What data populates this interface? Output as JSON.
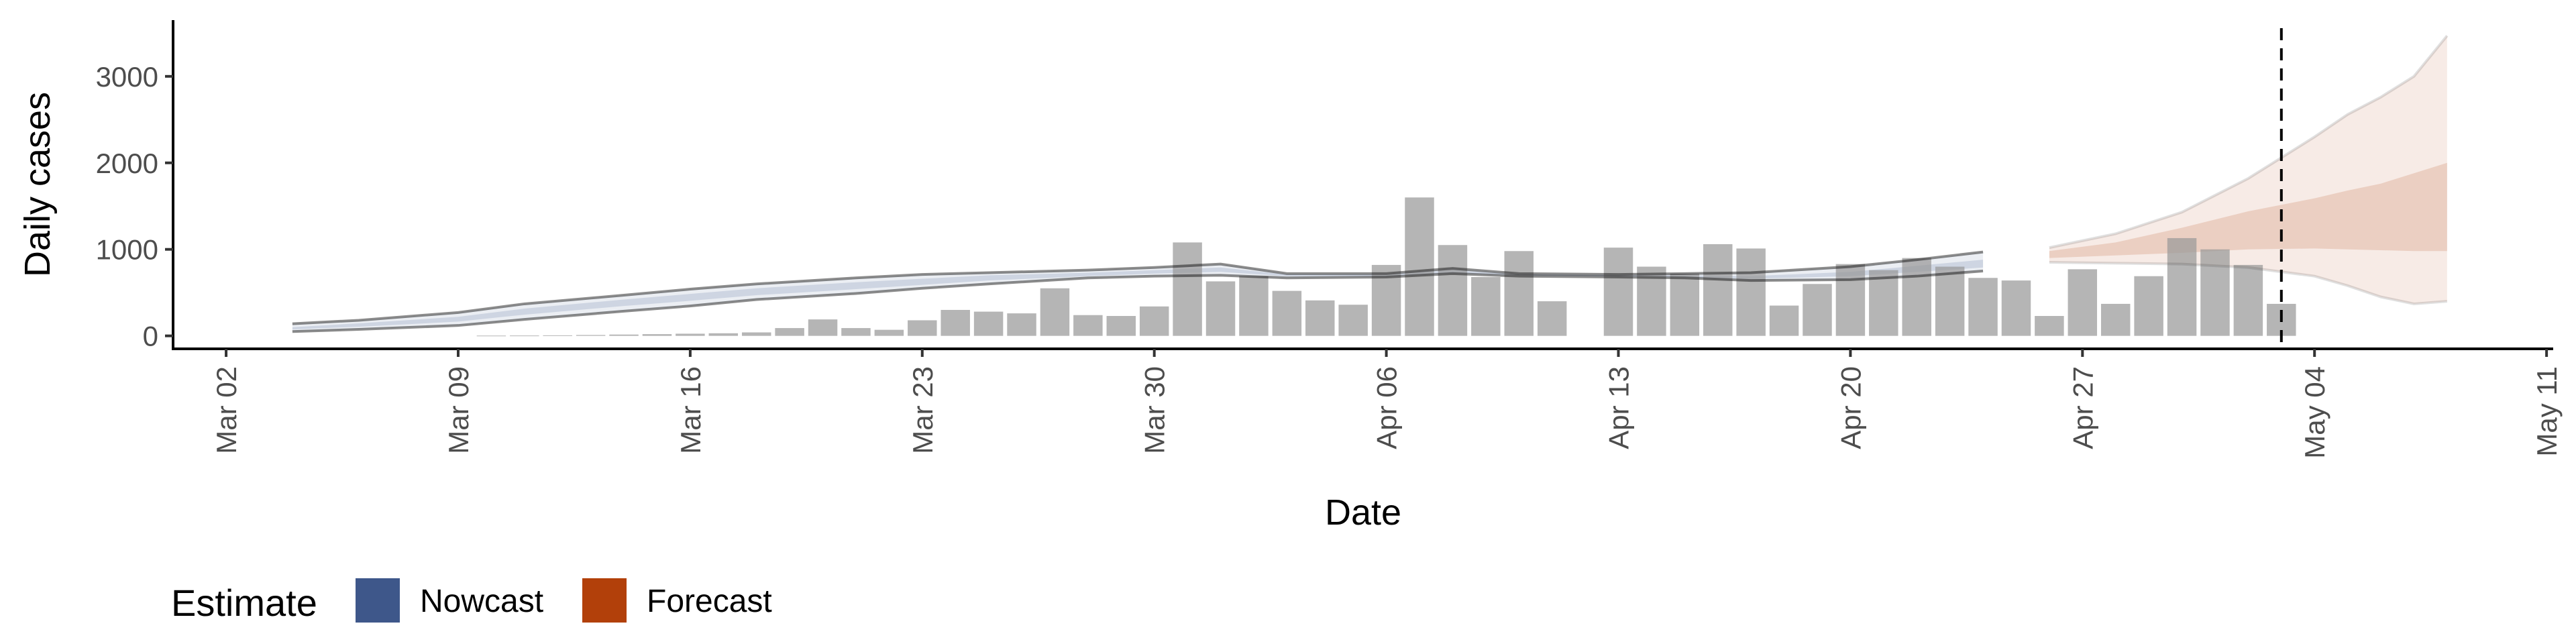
{
  "chart_data": {
    "type": "bar",
    "xlabel": "Date",
    "ylabel": "Daily cases",
    "y_ticks": [
      0,
      1000,
      2000,
      3000
    ],
    "ylim": [
      -150,
      3650
    ],
    "x_ticks": [
      "Mar 02",
      "Mar 09",
      "Mar 16",
      "Mar 23",
      "Mar 30",
      "Apr 06",
      "Apr 13",
      "Apr 20",
      "Apr 27",
      "May 04",
      "May 11"
    ],
    "x_start_date": "2020-03-02",
    "xlim_days": [
      -1.6,
      70.2
    ],
    "grid": false,
    "estimate_date": "2020-05-03",
    "bars": {
      "dates": [
        "2020-03-10",
        "2020-03-11",
        "2020-03-12",
        "2020-03-13",
        "2020-03-14",
        "2020-03-15",
        "2020-03-16",
        "2020-03-17",
        "2020-03-18",
        "2020-03-19",
        "2020-03-20",
        "2020-03-21",
        "2020-03-22",
        "2020-03-23",
        "2020-03-24",
        "2020-03-25",
        "2020-03-26",
        "2020-03-27",
        "2020-03-28",
        "2020-03-29",
        "2020-03-30",
        "2020-03-31",
        "2020-04-01",
        "2020-04-02",
        "2020-04-03",
        "2020-04-04",
        "2020-04-05",
        "2020-04-06",
        "2020-04-07",
        "2020-04-08",
        "2020-04-09",
        "2020-04-10",
        "2020-04-11",
        "2020-04-12",
        "2020-04-13",
        "2020-04-14",
        "2020-04-15",
        "2020-04-16",
        "2020-04-17",
        "2020-04-18",
        "2020-04-19",
        "2020-04-20",
        "2020-04-21",
        "2020-04-22",
        "2020-04-23",
        "2020-04-24",
        "2020-04-25",
        "2020-04-26",
        "2020-04-27",
        "2020-04-28",
        "2020-04-29",
        "2020-04-30",
        "2020-05-01",
        "2020-05-02",
        "2020-05-03"
      ],
      "values": [
        3,
        4,
        6,
        10,
        15,
        20,
        25,
        30,
        40,
        90,
        190,
        90,
        70,
        180,
        300,
        280,
        260,
        550,
        240,
        230,
        340,
        1080,
        630,
        690,
        520,
        410,
        360,
        820,
        1600,
        1050,
        680,
        980,
        400,
        0,
        1020,
        800,
        720,
        1060,
        1010,
        350,
        600,
        830,
        760,
        900,
        800,
        670,
        640,
        230,
        770,
        370,
        690,
        1130,
        1000,
        820,
        370
      ]
    },
    "nowcast": {
      "name": "Nowcast",
      "color": "#3a5488",
      "dates": [
        "2020-03-04",
        "2020-03-06",
        "2020-03-09",
        "2020-03-11",
        "2020-03-14",
        "2020-03-16",
        "2020-03-18",
        "2020-03-21",
        "2020-03-23",
        "2020-03-25",
        "2020-03-28",
        "2020-03-30",
        "2020-04-01",
        "2020-04-03",
        "2020-04-06",
        "2020-04-08",
        "2020-04-10",
        "2020-04-13",
        "2020-04-15",
        "2020-04-17",
        "2020-04-20",
        "2020-04-22",
        "2020-04-24"
      ],
      "upper90": [
        140,
        180,
        270,
        370,
        470,
        540,
        600,
        670,
        710,
        730,
        760,
        790,
        830,
        720,
        720,
        780,
        720,
        710,
        720,
        730,
        800,
        880,
        970
      ],
      "upper50": [
        100,
        145,
        220,
        315,
        420,
        485,
        550,
        620,
        660,
        700,
        730,
        760,
        790,
        710,
        710,
        760,
        710,
        700,
        700,
        690,
        740,
        810,
        880
      ],
      "lower50": [
        75,
        105,
        165,
        245,
        345,
        405,
        470,
        540,
        590,
        640,
        690,
        720,
        740,
        690,
        690,
        730,
        700,
        690,
        680,
        660,
        690,
        740,
        790
      ],
      "lower90": [
        50,
        75,
        120,
        190,
        285,
        345,
        420,
        490,
        550,
        600,
        670,
        690,
        700,
        670,
        680,
        720,
        690,
        680,
        670,
        640,
        650,
        690,
        750
      ]
    },
    "forecast": {
      "name": "Forecast",
      "color": "#b03c05",
      "dates": [
        "2020-04-26",
        "2020-04-28",
        "2020-04-30",
        "2020-05-02",
        "2020-05-04",
        "2020-05-05",
        "2020-05-06",
        "2020-05-07",
        "2020-05-08"
      ],
      "upper90": [
        1020,
        1180,
        1430,
        1820,
        2300,
        2560,
        2760,
        3000,
        3470
      ],
      "upper50": [
        980,
        1080,
        1250,
        1440,
        1590,
        1680,
        1760,
        1880,
        2000
      ],
      "lower50": [
        900,
        930,
        960,
        1000,
        1010,
        1000,
        990,
        980,
        980
      ],
      "lower90": [
        850,
        840,
        830,
        790,
        690,
        580,
        450,
        370,
        400
      ]
    },
    "legend": {
      "title": "Estimate",
      "items": [
        {
          "label": "Nowcast",
          "color": "#3a5488"
        },
        {
          "label": "Forecast",
          "color": "#b03c05"
        }
      ]
    }
  }
}
